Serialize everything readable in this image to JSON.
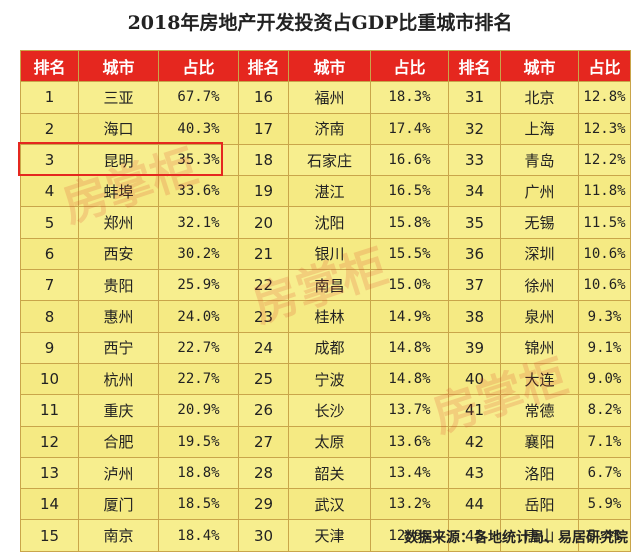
{
  "title": "2018年房地产开发投资占GDP比重城市排名",
  "headers": [
    "排名",
    "城市",
    "占比",
    "排名",
    "城市",
    "占比",
    "排名",
    "城市",
    "占比"
  ],
  "rows": [
    [
      "1",
      "三亚",
      "67.7%",
      "16",
      "福州",
      "18.3%",
      "31",
      "北京",
      "12.8%"
    ],
    [
      "2",
      "海口",
      "40.3%",
      "17",
      "济南",
      "17.4%",
      "32",
      "上海",
      "12.3%"
    ],
    [
      "3",
      "昆明",
      "35.3%",
      "18",
      "石家庄",
      "16.6%",
      "33",
      "青岛",
      "12.2%"
    ],
    [
      "4",
      "蚌埠",
      "33.6%",
      "19",
      "湛江",
      "16.5%",
      "34",
      "广州",
      "11.8%"
    ],
    [
      "5",
      "郑州",
      "32.1%",
      "20",
      "沈阳",
      "15.8%",
      "35",
      "无锡",
      "11.5%"
    ],
    [
      "6",
      "西安",
      "30.2%",
      "21",
      "银川",
      "15.5%",
      "36",
      "深圳",
      "10.6%"
    ],
    [
      "7",
      "贵阳",
      "25.9%",
      "22",
      "南昌",
      "15.0%",
      "37",
      "徐州",
      "10.6%"
    ],
    [
      "8",
      "惠州",
      "24.0%",
      "23",
      "桂林",
      "14.9%",
      "38",
      "泉州",
      "9.3%"
    ],
    [
      "9",
      "西宁",
      "22.7%",
      "24",
      "成都",
      "14.8%",
      "39",
      "锦州",
      "9.1%"
    ],
    [
      "10",
      "杭州",
      "22.7%",
      "25",
      "宁波",
      "14.8%",
      "40",
      "大连",
      "9.0%"
    ],
    [
      "11",
      "重庆",
      "20.9%",
      "26",
      "长沙",
      "13.7%",
      "41",
      "常德",
      "8.2%"
    ],
    [
      "12",
      "合肥",
      "19.5%",
      "27",
      "太原",
      "13.6%",
      "42",
      "襄阳",
      "7.1%"
    ],
    [
      "13",
      "泸州",
      "18.8%",
      "28",
      "韶关",
      "13.4%",
      "43",
      "洛阳",
      "6.7%"
    ],
    [
      "14",
      "厦门",
      "18.5%",
      "29",
      "武汉",
      "13.2%",
      "44",
      "岳阳",
      "5.9%"
    ],
    [
      "15",
      "南京",
      "18.4%",
      "30",
      "天津",
      "12.9%",
      "45",
      "唐山",
      "5.4%"
    ]
  ],
  "source": "数据来源：各地统计局、易居研究院",
  "watermark": "房掌柜",
  "colors": {
    "header_bg": "#e5271f",
    "cell_bg": "#f7ee8e",
    "highlight": "#e5271f"
  }
}
